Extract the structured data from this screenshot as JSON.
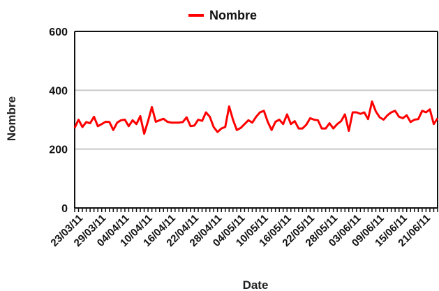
{
  "chart_data": {
    "type": "line",
    "xlabel": "Date",
    "ylabel": "Nombre",
    "ylim": [
      0,
      600
    ],
    "yticks": [
      "0",
      "200",
      "400",
      "600"
    ],
    "grid": "horizontal",
    "legend_position": "top-center",
    "line_color": "#ff0000",
    "x_start": "23/03/11",
    "x_end": "23/06/11",
    "x_tick_labels": [
      "23/03/11",
      "29/03/11",
      "04/04/11",
      "10/04/11",
      "16/04/11",
      "22/04/11",
      "28/04/11",
      "04/05/11",
      "10/05/11",
      "16/05/11",
      "22/05/11",
      "28/05/11",
      "03/06/11",
      "09/06/11",
      "15/06/11",
      "21/06/11"
    ],
    "series": [
      {
        "name": "Nombre",
        "values": [
          272,
          300,
          275,
          292,
          288,
          310,
          278,
          285,
          293,
          292,
          265,
          290,
          298,
          300,
          278,
          298,
          285,
          312,
          252,
          295,
          343,
          293,
          298,
          303,
          293,
          290,
          290,
          290,
          292,
          308,
          278,
          280,
          300,
          296,
          325,
          310,
          275,
          258,
          270,
          275,
          345,
          300,
          265,
          272,
          285,
          298,
          290,
          310,
          325,
          330,
          293,
          265,
          293,
          300,
          285,
          318,
          285,
          295,
          270,
          270,
          283,
          305,
          300,
          298,
          270,
          270,
          288,
          270,
          285,
          295,
          318,
          262,
          325,
          325,
          320,
          325,
          302,
          362,
          328,
          308,
          300,
          315,
          325,
          330,
          310,
          305,
          315,
          292,
          300,
          302,
          330,
          325,
          335,
          285,
          305
        ]
      }
    ]
  }
}
